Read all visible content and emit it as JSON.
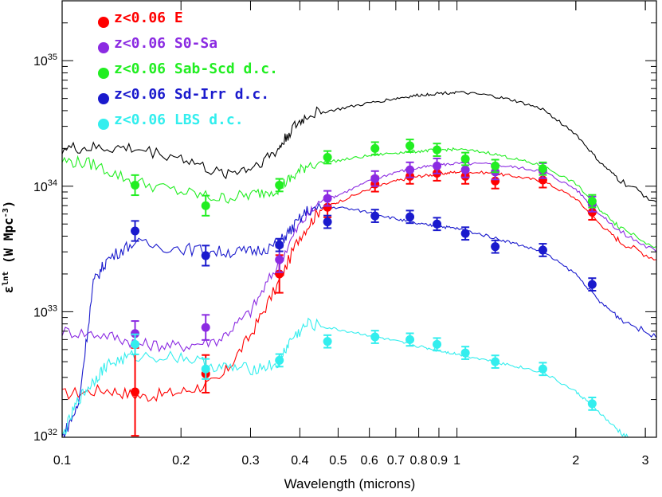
{
  "chart_data": {
    "type": "line",
    "xlabel": "Wavelength (microns)",
    "ylabel": "ε",
    "ylabel_sup": "lnt",
    "ylabel_rest": " (W Mpc",
    "ylabel_unit_sup": "-3",
    "ylabel_close": ")",
    "xscale": "log",
    "yscale": "log",
    "xlim": [
      0.1,
      3.2
    ],
    "ylim": [
      1e+32,
      3e+35
    ],
    "x_tick_labels": [
      {
        "x": 0.1,
        "label": "0.1"
      },
      {
        "x": 0.2,
        "label": "0.2"
      },
      {
        "x": 0.3,
        "label": "0.3"
      },
      {
        "x": 0.4,
        "label": "0.4"
      },
      {
        "x": 0.5,
        "label": "0.5"
      },
      {
        "x": 0.6,
        "label": "0.6"
      },
      {
        "x": 0.7,
        "label": "0.7"
      },
      {
        "x": 0.8,
        "label": "0.8"
      },
      {
        "x": 0.9,
        "label": "0.9"
      },
      {
        "x": 1,
        "label": "1"
      },
      {
        "x": 2,
        "label": "2"
      },
      {
        "x": 3,
        "label": "3"
      }
    ],
    "y_tick_labels": [
      {
        "exp": 32,
        "base": "10",
        "power": "32"
      },
      {
        "exp": 33,
        "base": "10",
        "power": "33"
      },
      {
        "exp": 34,
        "base": "10",
        "power": "34"
      },
      {
        "exp": 35,
        "base": "10",
        "power": "35"
      }
    ],
    "legend_position": "top-left",
    "series": [
      {
        "name": "z<0.06 E",
        "color": "#ff0000",
        "points": [
          [
            0.153,
            2.3e+32
          ],
          [
            0.231,
            3.2e+32
          ],
          [
            0.355,
            2e+33
          ],
          [
            0.47,
            6.8e+33
          ],
          [
            0.62,
            1.04e+34
          ],
          [
            0.76,
            1.2e+34
          ],
          [
            0.89,
            1.27e+34
          ],
          [
            1.05,
            1.2e+34
          ],
          [
            1.25,
            1.1e+34
          ],
          [
            1.65,
            1.12e+34
          ],
          [
            2.2,
            6.2e+33
          ]
        ],
        "errors": [
          [
            0.153,
            0.35
          ],
          [
            0.231,
            0.15
          ],
          [
            0.355,
            0.15
          ],
          [
            0.47,
            0.08
          ],
          [
            0.62,
            0.06
          ],
          [
            0.76,
            0.06
          ],
          [
            0.89,
            0.06
          ],
          [
            1.05,
            0.06
          ],
          [
            1.25,
            0.06
          ],
          [
            1.65,
            0.06
          ],
          [
            2.2,
            0.06
          ]
        ],
        "curve": [
          [
            0.1,
            2.2e+32
          ],
          [
            0.13,
            2.4e+32
          ],
          [
            0.16,
            2.1e+32
          ],
          [
            0.2,
            2.3e+32
          ],
          [
            0.25,
            2.8e+32
          ],
          [
            0.3,
            6.5e+32
          ],
          [
            0.35,
            1.6e+33
          ],
          [
            0.4,
            4e+33
          ],
          [
            0.45,
            6.5e+33
          ],
          [
            0.5,
            7.5e+33
          ],
          [
            0.6,
            9.5e+33
          ],
          [
            0.7,
            1.1e+34
          ],
          [
            0.8,
            1.2e+34
          ],
          [
            0.9,
            1.25e+34
          ],
          [
            1.0,
            1.3e+34
          ],
          [
            1.2,
            1.28e+34
          ],
          [
            1.4,
            1.2e+34
          ],
          [
            1.65,
            1.1e+34
          ],
          [
            2.0,
            8e+33
          ],
          [
            2.3,
            5e+33
          ],
          [
            2.6,
            3.6e+33
          ],
          [
            3.2,
            2.6e+33
          ]
        ]
      },
      {
        "name": "z<0.06 S0-Sa",
        "color": "#8b2be2",
        "points": [
          [
            0.153,
            6.7e+32
          ],
          [
            0.231,
            7.5e+32
          ],
          [
            0.355,
            2.6e+33
          ],
          [
            0.47,
            8e+33
          ],
          [
            0.62,
            1.15e+34
          ],
          [
            0.76,
            1.35e+34
          ],
          [
            0.89,
            1.45e+34
          ],
          [
            1.05,
            1.35e+34
          ],
          [
            1.25,
            1.3e+34
          ],
          [
            1.65,
            1.33e+34
          ],
          [
            2.2,
            7.2e+33
          ]
        ],
        "errors": [
          [
            0.153,
            0.1
          ],
          [
            0.231,
            0.1
          ],
          [
            0.355,
            0.1
          ],
          [
            0.47,
            0.06
          ],
          [
            0.62,
            0.06
          ],
          [
            0.76,
            0.06
          ],
          [
            0.89,
            0.06
          ],
          [
            1.05,
            0.06
          ],
          [
            1.25,
            0.06
          ],
          [
            1.65,
            0.06
          ],
          [
            2.2,
            0.06
          ]
        ],
        "curve": [
          [
            0.1,
            7e+32
          ],
          [
            0.13,
            6.5e+32
          ],
          [
            0.16,
            5.5e+32
          ],
          [
            0.2,
            5.3e+32
          ],
          [
            0.25,
            6e+32
          ],
          [
            0.3,
            1e+33
          ],
          [
            0.35,
            2.3e+33
          ],
          [
            0.4,
            5e+33
          ],
          [
            0.45,
            7.5e+33
          ],
          [
            0.5,
            8.5e+33
          ],
          [
            0.6,
            1.1e+34
          ],
          [
            0.7,
            1.3e+34
          ],
          [
            0.8,
            1.4e+34
          ],
          [
            0.9,
            1.48e+34
          ],
          [
            1.0,
            1.52e+34
          ],
          [
            1.2,
            1.5e+34
          ],
          [
            1.4,
            1.42e+34
          ],
          [
            1.65,
            1.32e+34
          ],
          [
            2.0,
            9.5e+33
          ],
          [
            2.3,
            6e+33
          ],
          [
            2.6,
            4.3e+33
          ],
          [
            3.2,
            3e+33
          ]
        ]
      },
      {
        "name": "z<0.06 Sab-Scd d.c.",
        "color": "#22ee22",
        "points": [
          [
            0.153,
            1.02e+34
          ],
          [
            0.231,
            7e+33
          ],
          [
            0.355,
            1.02e+34
          ],
          [
            0.47,
            1.7e+34
          ],
          [
            0.62,
            2e+34
          ],
          [
            0.76,
            2.1e+34
          ],
          [
            0.89,
            1.95e+34
          ],
          [
            1.05,
            1.65e+34
          ],
          [
            1.25,
            1.45e+34
          ],
          [
            1.65,
            1.38e+34
          ],
          [
            2.2,
            7.6e+33
          ]
        ],
        "errors": [
          [
            0.153,
            0.08
          ],
          [
            0.231,
            0.08
          ],
          [
            0.355,
            0.05
          ],
          [
            0.47,
            0.05
          ],
          [
            0.62,
            0.05
          ],
          [
            0.76,
            0.05
          ],
          [
            0.89,
            0.05
          ],
          [
            1.05,
            0.05
          ],
          [
            1.25,
            0.05
          ],
          [
            1.65,
            0.05
          ],
          [
            2.2,
            0.05
          ]
        ],
        "curve": [
          [
            0.1,
            1.6e+34
          ],
          [
            0.12,
            1.5e+34
          ],
          [
            0.15,
            1.1e+34
          ],
          [
            0.2,
            9e+33
          ],
          [
            0.25,
            8e+33
          ],
          [
            0.3,
            8.5e+33
          ],
          [
            0.35,
            9.5e+33
          ],
          [
            0.38,
            1.15e+34
          ],
          [
            0.42,
            1.5e+34
          ],
          [
            0.5,
            1.6e+34
          ],
          [
            0.6,
            1.75e+34
          ],
          [
            0.7,
            1.85e+34
          ],
          [
            0.8,
            1.9e+34
          ],
          [
            0.9,
            1.95e+34
          ],
          [
            1.0,
            1.97e+34
          ],
          [
            1.2,
            1.85e+34
          ],
          [
            1.4,
            1.65e+34
          ],
          [
            1.65,
            1.45e+34
          ],
          [
            2.0,
            1.05e+34
          ],
          [
            2.3,
            6.5e+33
          ],
          [
            2.6,
            4.7e+33
          ],
          [
            3.2,
            3.3e+33
          ]
        ]
      },
      {
        "name": "z<0.06 Sd-Irr d.c.",
        "color": "#1a1acd",
        "points": [
          [
            0.153,
            4.4e+33
          ],
          [
            0.231,
            2.8e+33
          ],
          [
            0.355,
            3.4e+33
          ],
          [
            0.47,
            5.2e+33
          ],
          [
            0.62,
            5.8e+33
          ],
          [
            0.76,
            5.7e+33
          ],
          [
            0.89,
            5e+33
          ],
          [
            1.05,
            4.2e+33
          ],
          [
            1.25,
            3.3e+33
          ],
          [
            1.65,
            3.1e+33
          ],
          [
            2.2,
            1.65e+33
          ]
        ],
        "errors": [
          [
            0.153,
            0.08
          ],
          [
            0.231,
            0.08
          ],
          [
            0.355,
            0.05
          ],
          [
            0.47,
            0.05
          ],
          [
            0.62,
            0.05
          ],
          [
            0.76,
            0.05
          ],
          [
            0.89,
            0.05
          ],
          [
            1.05,
            0.05
          ],
          [
            1.25,
            0.05
          ],
          [
            1.65,
            0.05
          ],
          [
            2.2,
            0.05
          ]
        ],
        "curve": [
          [
            0.1,
            1e+32
          ],
          [
            0.11,
            1.8e+32
          ],
          [
            0.12,
            1.7e+33
          ],
          [
            0.13,
            2.6e+33
          ],
          [
            0.15,
            3.5e+33
          ],
          [
            0.2,
            3.2e+33
          ],
          [
            0.25,
            3e+33
          ],
          [
            0.3,
            3e+33
          ],
          [
            0.35,
            3.4e+33
          ],
          [
            0.38,
            4.5e+33
          ],
          [
            0.42,
            6.5e+33
          ],
          [
            0.5,
            6.8e+33
          ],
          [
            0.6,
            6.2e+33
          ],
          [
            0.7,
            5.5e+33
          ],
          [
            0.8,
            5e+33
          ],
          [
            0.9,
            4.8e+33
          ],
          [
            1.0,
            4.6e+33
          ],
          [
            1.2,
            4e+33
          ],
          [
            1.4,
            3.5e+33
          ],
          [
            1.65,
            3e+33
          ],
          [
            2.0,
            2e+33
          ],
          [
            2.3,
            1.2e+33
          ],
          [
            2.6,
            8.8e+32
          ],
          [
            3.2,
            6.2e+32
          ]
        ]
      },
      {
        "name": "z<0.06 LBS d.c.",
        "color": "#33eeee",
        "points": [
          [
            0.153,
            5.5e+32
          ],
          [
            0.231,
            3.5e+32
          ],
          [
            0.355,
            4.1e+32
          ],
          [
            0.47,
            5.8e+32
          ],
          [
            0.62,
            6.3e+32
          ],
          [
            0.76,
            6e+32
          ],
          [
            0.89,
            5.5e+32
          ],
          [
            1.05,
            4.7e+32
          ],
          [
            1.25,
            4e+32
          ],
          [
            1.65,
            3.5e+32
          ],
          [
            2.2,
            1.85e+32
          ]
        ],
        "errors": [
          [
            0.153,
            0.08
          ],
          [
            0.231,
            0.08
          ],
          [
            0.355,
            0.05
          ],
          [
            0.47,
            0.05
          ],
          [
            0.62,
            0.05
          ],
          [
            0.76,
            0.05
          ],
          [
            0.89,
            0.05
          ],
          [
            1.05,
            0.05
          ],
          [
            1.25,
            0.05
          ],
          [
            1.65,
            0.05
          ],
          [
            2.2,
            0.05
          ]
        ],
        "curve": [
          [
            0.1,
            1e+32
          ],
          [
            0.11,
            2e+32
          ],
          [
            0.12,
            2.8e+32
          ],
          [
            0.13,
            3.8e+32
          ],
          [
            0.15,
            4.4e+32
          ],
          [
            0.2,
            4.4e+32
          ],
          [
            0.25,
            3.6e+32
          ],
          [
            0.3,
            3.5e+32
          ],
          [
            0.35,
            3.8e+32
          ],
          [
            0.38,
            6e+32
          ],
          [
            0.42,
            8e+32
          ],
          [
            0.5,
            7.2e+32
          ],
          [
            0.6,
            6.5e+32
          ],
          [
            0.7,
            5.8e+32
          ],
          [
            0.8,
            5.3e+32
          ],
          [
            0.9,
            4.9e+32
          ],
          [
            1.0,
            4.6e+32
          ],
          [
            1.2,
            4.1e+32
          ],
          [
            1.4,
            3.7e+32
          ],
          [
            1.65,
            3.3e+32
          ],
          [
            2.0,
            2.3e+32
          ],
          [
            2.2,
            1.8e+32
          ],
          [
            2.5,
            1.2e+32
          ],
          [
            2.8,
            9e+31
          ]
        ]
      },
      {
        "name": "total",
        "color": "#000000",
        "legend": false,
        "curve": [
          [
            0.1,
            2e+34
          ],
          [
            0.12,
            2e+34
          ],
          [
            0.15,
            2e+34
          ],
          [
            0.2,
            1.7e+34
          ],
          [
            0.25,
            1.25e+34
          ],
          [
            0.3,
            1.4e+34
          ],
          [
            0.35,
            1.9e+34
          ],
          [
            0.38,
            2.8e+34
          ],
          [
            0.42,
            3.7e+34
          ],
          [
            0.5,
            4.1e+34
          ],
          [
            0.6,
            4.6e+34
          ],
          [
            0.7,
            5e+34
          ],
          [
            0.8,
            5.3e+34
          ],
          [
            0.9,
            5.5e+34
          ],
          [
            1.0,
            5.6e+34
          ],
          [
            1.2,
            5.3e+34
          ],
          [
            1.4,
            4.8e+34
          ],
          [
            1.65,
            4.1e+34
          ],
          [
            2.0,
            2.6e+34
          ],
          [
            2.3,
            1.55e+34
          ],
          [
            2.6,
            1.1e+34
          ],
          [
            3.2,
            7.5e+33
          ]
        ]
      }
    ]
  }
}
